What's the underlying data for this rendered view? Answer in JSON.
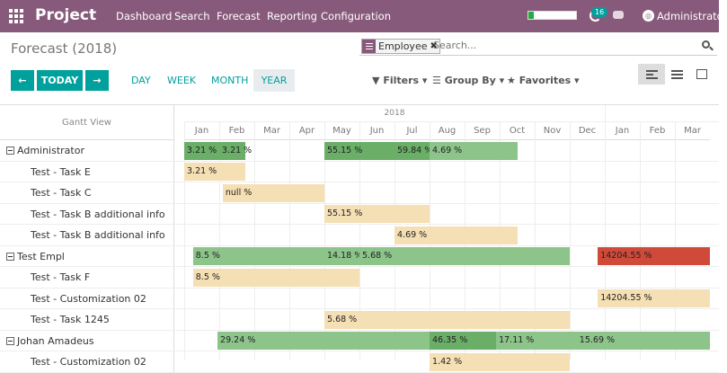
{
  "navbar": {
    "brand": "Project",
    "menu": [
      "Dashboard",
      "Search",
      "Forecast",
      "Reporting",
      "Configuration"
    ],
    "activity_count": "16",
    "user": "Administrator",
    "progress_fraction": 0.12,
    "colors": {
      "primary": "#875A7B",
      "accent": "#00A09D"
    }
  },
  "control": {
    "title": "Forecast (2018)",
    "facet_label": "Employee",
    "search_placeholder": "Search...",
    "nav": {
      "prev": "←",
      "today": "TODAY",
      "next": "→"
    },
    "scales": [
      "DAY",
      "WEEK",
      "MONTH",
      "YEAR"
    ],
    "active_scale": "YEAR",
    "filters": "Filters ▾",
    "groupby": "Group By ▾",
    "favorites": "Favorites ▾"
  },
  "gantt": {
    "header_label": "Gantt View",
    "year": "2018",
    "months": [
      "Jan",
      "Feb",
      "Mar",
      "Apr",
      "May",
      "Jun",
      "Jul",
      "Aug",
      "Sep",
      "Oct",
      "Nov",
      "Dec",
      "Jan",
      "Feb",
      "Mar"
    ],
    "rows": [
      {
        "label": "Administrator",
        "group": true
      },
      {
        "label": "Test - Task E",
        "group": false
      },
      {
        "label": "Test - Task C",
        "group": false
      },
      {
        "label": "Test - Task B additional info",
        "group": false
      },
      {
        "label": "Test - Task B additional info",
        "group": false
      },
      {
        "label": "Test Empl",
        "group": true
      },
      {
        "label": "Test - Task F",
        "group": false
      },
      {
        "label": "Test - Customization 02",
        "group": false
      },
      {
        "label": "Test - Task 1245",
        "group": false
      },
      {
        "label": "Johan Amadeus",
        "group": true
      },
      {
        "label": "Test - Customization 02",
        "group": false
      }
    ],
    "bars": [
      {
        "row": 0,
        "start": 0.0,
        "end": 1.0,
        "text": "3.21 %",
        "kind": "dark"
      },
      {
        "row": 0,
        "start": 1.0,
        "end": 1.75,
        "text": "3.21 %",
        "kind": "dark"
      },
      {
        "row": 0,
        "start": 4.0,
        "end": 6.0,
        "text": "55.15 %",
        "kind": "dark"
      },
      {
        "row": 0,
        "start": 6.0,
        "end": 7.0,
        "text": "59.84 %",
        "kind": "dark"
      },
      {
        "row": 0,
        "start": 7.0,
        "end": 9.5,
        "text": "4.69 %",
        "kind": "consolidated"
      },
      {
        "row": 1,
        "start": 0.0,
        "end": 1.75,
        "text": "3.21 %",
        "kind": "task"
      },
      {
        "row": 2,
        "start": 1.1,
        "end": 4.0,
        "text": "null %",
        "kind": "task"
      },
      {
        "row": 3,
        "start": 4.0,
        "end": 7.0,
        "text": "55.15 %",
        "kind": "task"
      },
      {
        "row": 4,
        "start": 6.0,
        "end": 9.5,
        "text": "4.69 %",
        "kind": "task"
      },
      {
        "row": 5,
        "start": 0.25,
        "end": 4.0,
        "text": "8.5 %",
        "kind": "consolidated"
      },
      {
        "row": 5,
        "start": 4.0,
        "end": 5.0,
        "text": "14.18 %",
        "kind": "consolidated"
      },
      {
        "row": 5,
        "start": 5.0,
        "end": 11.0,
        "text": "5.68 %",
        "kind": "consolidated"
      },
      {
        "row": 5,
        "start": 11.8,
        "end": 15.0,
        "text": "14204.55 %",
        "kind": "red"
      },
      {
        "row": 6,
        "start": 0.25,
        "end": 5.0,
        "text": "8.5 %",
        "kind": "task"
      },
      {
        "row": 7,
        "start": 11.8,
        "end": 15.0,
        "text": "14204.55 %",
        "kind": "task"
      },
      {
        "row": 8,
        "start": 4.0,
        "end": 11.0,
        "text": "5.68 %",
        "kind": "task"
      },
      {
        "row": 9,
        "start": 0.95,
        "end": 7.0,
        "text": "29.24 %",
        "kind": "consolidated"
      },
      {
        "row": 9,
        "start": 7.0,
        "end": 8.9,
        "text": "46.35 %",
        "kind": "dark"
      },
      {
        "row": 9,
        "start": 8.9,
        "end": 11.2,
        "text": "17.11 %",
        "kind": "consolidated"
      },
      {
        "row": 9,
        "start": 11.2,
        "end": 15.0,
        "text": "15.69 %",
        "kind": "consolidated"
      },
      {
        "row": 10,
        "start": 7.0,
        "end": 11.0,
        "text": "1.42 %",
        "kind": "task"
      }
    ]
  }
}
